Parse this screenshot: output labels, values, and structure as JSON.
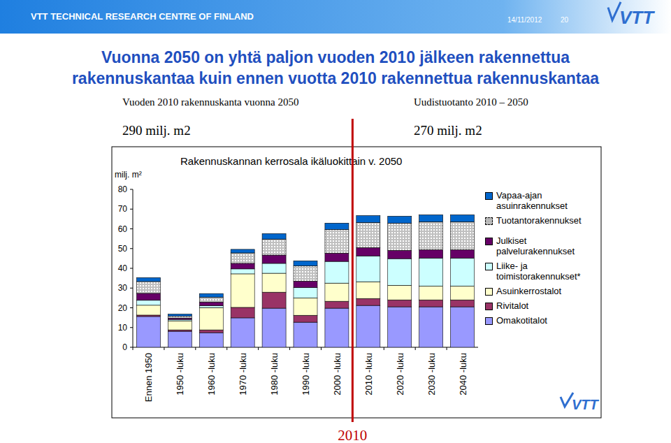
{
  "header": {
    "organization": "VTT TECHNICAL RESEARCH CENTRE OF FINLAND",
    "date": "14/11/2012",
    "page": "20",
    "logo": "VTT"
  },
  "slide": {
    "title_lines": [
      "Vuonna 2050 on yhtä paljon vuoden 2010 jälkeen rakennettua",
      "rakennuskantaa kuin ennen vuotta 2010 rakennettua rakennuskantaa"
    ],
    "left_caption": "Vuoden 2010 rakennuskanta vuonna 2050",
    "left_value": "290 milj. m2",
    "right_caption": "Uudistuotanto 2010 – 2050",
    "right_value": "270 milj. m2"
  },
  "chart_data": {
    "type": "bar",
    "stacked": true,
    "title": "Rakennuskannan kerrosala ikäluokittain v. 2050",
    "y_label": "milj. m²",
    "annotations": [
      "2010"
    ],
    "categories": [
      "Ennen 1950",
      "1950 -luku",
      "1960 -luku",
      "1970 -luku",
      "1980 -luku",
      "1990 -luku",
      "2000 -luku",
      "2010 -luku",
      "2020 -luku",
      "2030 -luku",
      "2040 -luku"
    ],
    "ylim": [
      0,
      80
    ],
    "yticks": [
      0,
      10,
      20,
      30,
      40,
      50,
      60,
      70,
      80
    ],
    "grid": false,
    "legend": "right",
    "series": [
      {
        "name": "Omakotitalot",
        "color": "#9999ff",
        "values": [
          15.6,
          8.1,
          7.4,
          14.9,
          19.8,
          12.7,
          19.8,
          21.2,
          20.5,
          20.5,
          20.5
        ]
      },
      {
        "name": "Rivitalot",
        "color": "#993366",
        "values": [
          0.7,
          0.7,
          1.4,
          5.3,
          8.1,
          3.5,
          3.5,
          3.5,
          3.5,
          3.5,
          3.5
        ]
      },
      {
        "name": "Asuinkerrostalot",
        "color": "#ffffcc",
        "values": [
          5,
          4.6,
          11.3,
          17,
          9.6,
          8.8,
          9.2,
          8.5,
          7.4,
          7,
          7
        ]
      },
      {
        "name": "Liike- ja toimistorakennukset*",
        "color": "#ccffff",
        "values": [
          2.5,
          0.7,
          1,
          2.5,
          5,
          5.3,
          11,
          13.1,
          13.5,
          14.2,
          14.2
        ]
      },
      {
        "name": "Julkiset palvelurakennukset",
        "color": "#660066",
        "values": [
          3.5,
          0.7,
          1.8,
          2.8,
          4.2,
          3.2,
          4.2,
          4.2,
          4.2,
          4.2,
          4.2
        ]
      },
      {
        "name": "Tuotantorakennukset",
        "color": "#c0c0c0",
        "marker": "dotted",
        "values": [
          6,
          1,
          2.5,
          5.3,
          8.1,
          7.8,
          12,
          12.7,
          13.8,
          14.2,
          14.2
        ]
      },
      {
        "name": "Vapaa-ajan asuinrakennukset",
        "color": "#0066cc",
        "values": [
          2,
          1,
          1.8,
          1.8,
          2.8,
          2.5,
          3.2,
          3.5,
          3.5,
          3.5,
          3.5
        ]
      }
    ]
  }
}
